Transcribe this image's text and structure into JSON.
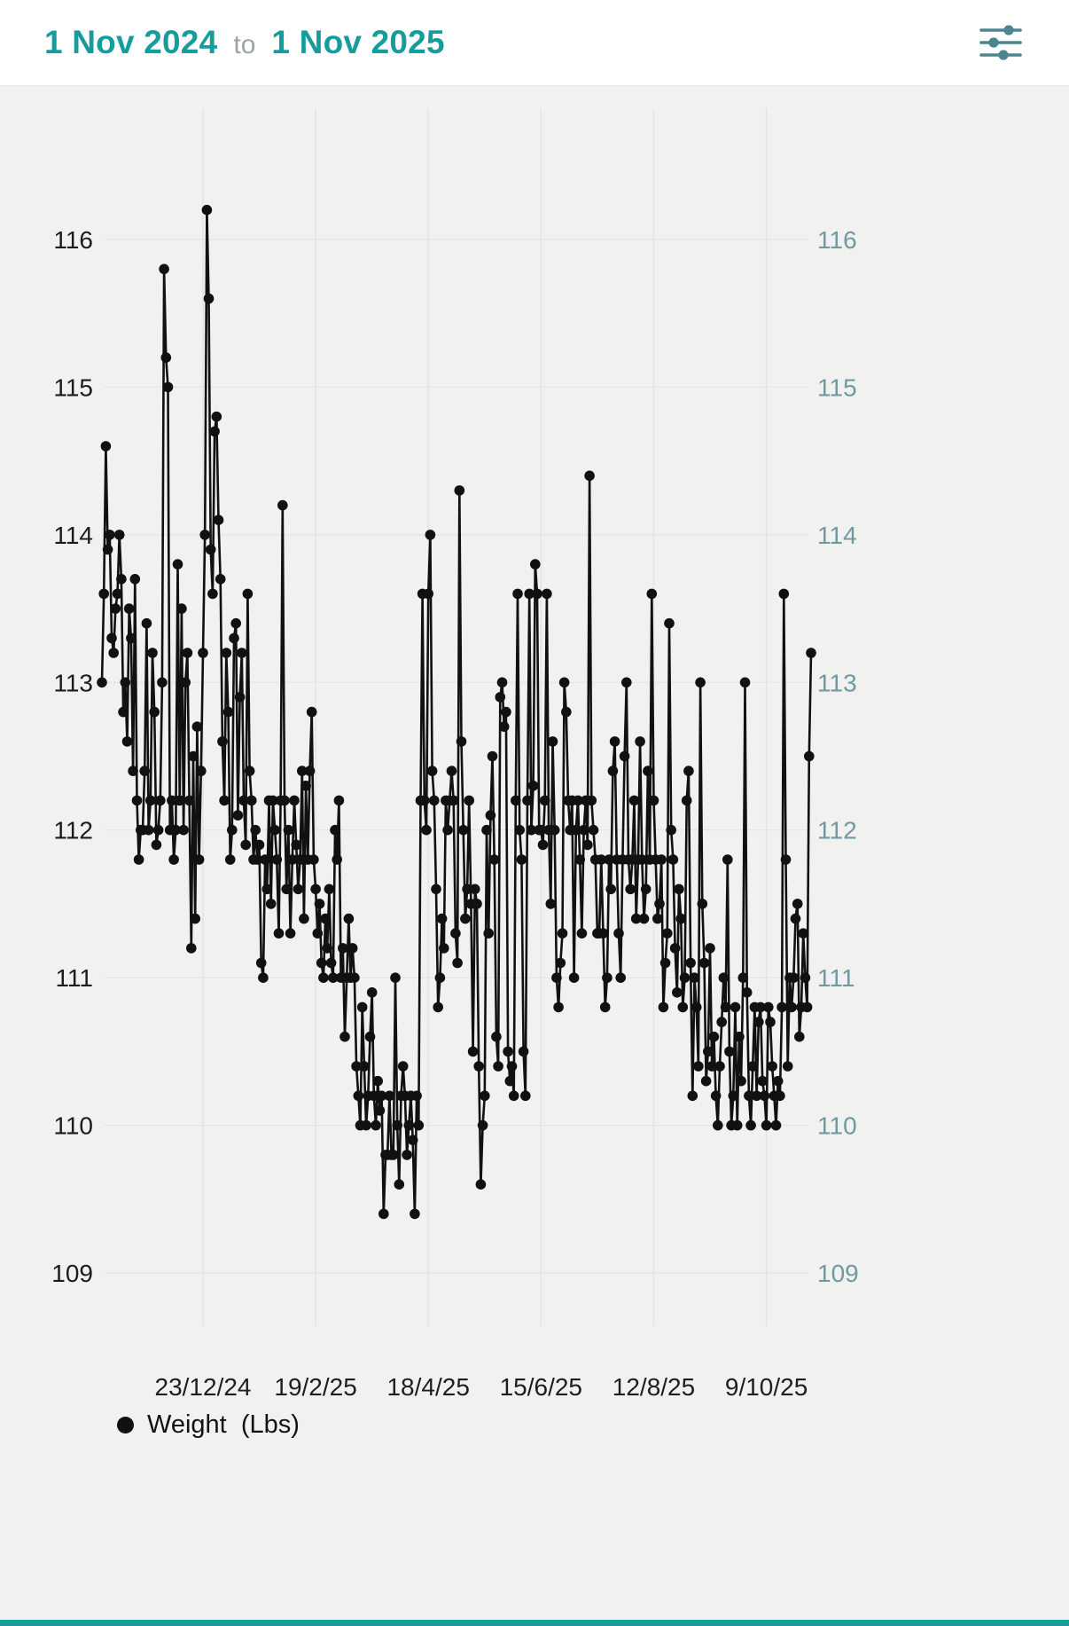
{
  "header": {
    "date_start": "1 Nov 2024",
    "date_separator": "to",
    "date_end": "1 Nov 2025",
    "filter_icon": "sliders-icon"
  },
  "legend": {
    "label": "Weight  (Lbs)"
  },
  "colors": {
    "accent": "#179c9c",
    "separator": "#9aa4a4",
    "icon": "#4b858d",
    "axis_left": "#1c1c1c",
    "axis_right": "#6f9aa1",
    "grid": "#e4e4e1",
    "point": "#111111",
    "background": "#f1f1ef",
    "header_bg": "#ffffff"
  },
  "chart_data": {
    "type": "scatter",
    "title": "",
    "series_name": "Weight (Lbs)",
    "unit": "Lbs",
    "grid": true,
    "legend_position": "bottom-left",
    "x_axis": {
      "start_date": "1 Nov 2024",
      "end_date": "1 Nov 2025",
      "tick_labels": [
        "23/12/24",
        "19/2/25",
        "18/4/25",
        "15/6/25",
        "12/8/25",
        "9/10/25"
      ],
      "tick_days": [
        52,
        110,
        168,
        226,
        284,
        342
      ],
      "range_days": [
        0,
        365
      ]
    },
    "y_axis": {
      "ticks": [
        116,
        115,
        114,
        113,
        112,
        111,
        110,
        109
      ],
      "range": [
        108.7,
        116.7
      ],
      "sides": "both"
    },
    "points": [
      [
        0,
        113.0
      ],
      [
        1,
        113.6
      ],
      [
        2,
        114.6
      ],
      [
        3,
        113.9
      ],
      [
        4,
        114.0
      ],
      [
        5,
        113.3
      ],
      [
        6,
        113.2
      ],
      [
        7,
        113.5
      ],
      [
        8,
        113.6
      ],
      [
        9,
        114.0
      ],
      [
        10,
        113.7
      ],
      [
        11,
        112.8
      ],
      [
        12,
        113.0
      ],
      [
        13,
        112.6
      ],
      [
        14,
        113.5
      ],
      [
        15,
        113.3
      ],
      [
        16,
        112.4
      ],
      [
        17,
        113.7
      ],
      [
        18,
        112.2
      ],
      [
        19,
        111.8
      ],
      [
        20,
        112.0
      ],
      [
        21,
        112.0
      ],
      [
        22,
        112.4
      ],
      [
        23,
        113.4
      ],
      [
        24,
        112.0
      ],
      [
        25,
        112.2
      ],
      [
        26,
        113.2
      ],
      [
        27,
        112.8
      ],
      [
        28,
        111.9
      ],
      [
        29,
        112.0
      ],
      [
        30,
        112.2
      ],
      [
        31,
        113.0
      ],
      [
        32,
        115.8
      ],
      [
        33,
        115.2
      ],
      [
        34,
        115.0
      ],
      [
        35,
        112.0
      ],
      [
        36,
        112.2
      ],
      [
        37,
        111.8
      ],
      [
        38,
        112.0
      ],
      [
        39,
        113.8
      ],
      [
        40,
        112.2
      ],
      [
        41,
        113.5
      ],
      [
        42,
        112.0
      ],
      [
        43,
        113.0
      ],
      [
        44,
        113.2
      ],
      [
        45,
        112.2
      ],
      [
        46,
        111.2
      ],
      [
        47,
        112.5
      ],
      [
        48,
        111.4
      ],
      [
        49,
        112.7
      ],
      [
        50,
        111.8
      ],
      [
        51,
        112.4
      ],
      [
        52,
        113.2
      ],
      [
        53,
        114.0
      ],
      [
        54,
        116.2
      ],
      [
        55,
        115.6
      ],
      [
        56,
        113.9
      ],
      [
        57,
        113.6
      ],
      [
        58,
        114.7
      ],
      [
        59,
        114.8
      ],
      [
        60,
        114.1
      ],
      [
        61,
        113.7
      ],
      [
        62,
        112.6
      ],
      [
        63,
        112.2
      ],
      [
        64,
        113.2
      ],
      [
        65,
        112.8
      ],
      [
        66,
        111.8
      ],
      [
        67,
        112.0
      ],
      [
        68,
        113.3
      ],
      [
        69,
        113.4
      ],
      [
        70,
        112.1
      ],
      [
        71,
        112.9
      ],
      [
        72,
        113.2
      ],
      [
        73,
        112.2
      ],
      [
        74,
        111.9
      ],
      [
        75,
        113.6
      ],
      [
        76,
        112.4
      ],
      [
        77,
        112.2
      ],
      [
        78,
        111.8
      ],
      [
        79,
        112.0
      ],
      [
        80,
        111.8
      ],
      [
        81,
        111.9
      ],
      [
        82,
        111.1
      ],
      [
        83,
        111.0
      ],
      [
        84,
        111.8
      ],
      [
        85,
        111.6
      ],
      [
        86,
        112.2
      ],
      [
        87,
        111.5
      ],
      [
        88,
        112.2
      ],
      [
        89,
        112.0
      ],
      [
        90,
        111.8
      ],
      [
        91,
        111.3
      ],
      [
        92,
        112.2
      ],
      [
        93,
        114.2
      ],
      [
        94,
        112.2
      ],
      [
        95,
        111.6
      ],
      [
        96,
        112.0
      ],
      [
        97,
        111.3
      ],
      [
        98,
        111.8
      ],
      [
        99,
        112.2
      ],
      [
        100,
        111.9
      ],
      [
        101,
        111.6
      ],
      [
        102,
        111.8
      ],
      [
        103,
        112.4
      ],
      [
        104,
        111.4
      ],
      [
        105,
        112.3
      ],
      [
        106,
        111.8
      ],
      [
        107,
        112.4
      ],
      [
        108,
        112.8
      ],
      [
        109,
        111.8
      ],
      [
        110,
        111.6
      ],
      [
        111,
        111.3
      ],
      [
        112,
        111.5
      ],
      [
        113,
        111.1
      ],
      [
        114,
        111.0
      ],
      [
        115,
        111.4
      ],
      [
        116,
        111.2
      ],
      [
        117,
        111.6
      ],
      [
        118,
        111.1
      ],
      [
        119,
        111.0
      ],
      [
        120,
        112.0
      ],
      [
        121,
        111.8
      ],
      [
        122,
        112.2
      ],
      [
        123,
        111.0
      ],
      [
        124,
        111.2
      ],
      [
        125,
        110.6
      ],
      [
        126,
        111.0
      ],
      [
        127,
        111.4
      ],
      [
        128,
        111.0
      ],
      [
        129,
        111.2
      ],
      [
        130,
        111.0
      ],
      [
        131,
        110.4
      ],
      [
        132,
        110.2
      ],
      [
        133,
        110.0
      ],
      [
        134,
        110.8
      ],
      [
        135,
        110.4
      ],
      [
        136,
        110.0
      ],
      [
        137,
        110.2
      ],
      [
        138,
        110.6
      ],
      [
        139,
        110.9
      ],
      [
        140,
        110.2
      ],
      [
        141,
        110.0
      ],
      [
        142,
        110.3
      ],
      [
        143,
        110.1
      ],
      [
        144,
        110.2
      ],
      [
        145,
        109.4
      ],
      [
        146,
        109.8
      ],
      [
        147,
        109.8
      ],
      [
        148,
        110.2
      ],
      [
        149,
        109.8
      ],
      [
        150,
        109.8
      ],
      [
        151,
        111.0
      ],
      [
        152,
        110.0
      ],
      [
        153,
        109.6
      ],
      [
        154,
        110.2
      ],
      [
        155,
        110.4
      ],
      [
        156,
        110.2
      ],
      [
        157,
        109.8
      ],
      [
        158,
        110.0
      ],
      [
        159,
        110.2
      ],
      [
        160,
        109.9
      ],
      [
        161,
        109.4
      ],
      [
        162,
        110.2
      ],
      [
        163,
        110.0
      ],
      [
        164,
        112.2
      ],
      [
        165,
        113.6
      ],
      [
        166,
        112.2
      ],
      [
        167,
        112.0
      ],
      [
        168,
        113.6
      ],
      [
        169,
        114.0
      ],
      [
        170,
        112.4
      ],
      [
        171,
        112.2
      ],
      [
        172,
        111.6
      ],
      [
        173,
        110.8
      ],
      [
        174,
        111.0
      ],
      [
        175,
        111.4
      ],
      [
        176,
        111.2
      ],
      [
        177,
        112.2
      ],
      [
        178,
        112.0
      ],
      [
        179,
        112.2
      ],
      [
        180,
        112.4
      ],
      [
        181,
        112.2
      ],
      [
        182,
        111.3
      ],
      [
        183,
        111.1
      ],
      [
        184,
        114.3
      ],
      [
        185,
        112.6
      ],
      [
        186,
        112.0
      ],
      [
        187,
        111.4
      ],
      [
        188,
        111.6
      ],
      [
        189,
        112.2
      ],
      [
        190,
        111.5
      ],
      [
        191,
        110.5
      ],
      [
        192,
        111.6
      ],
      [
        193,
        111.5
      ],
      [
        194,
        110.4
      ],
      [
        195,
        109.6
      ],
      [
        196,
        110.0
      ],
      [
        197,
        110.2
      ],
      [
        198,
        112.0
      ],
      [
        199,
        111.3
      ],
      [
        200,
        112.1
      ],
      [
        201,
        112.5
      ],
      [
        202,
        111.8
      ],
      [
        203,
        110.6
      ],
      [
        204,
        110.4
      ],
      [
        205,
        112.9
      ],
      [
        206,
        113.0
      ],
      [
        207,
        112.7
      ],
      [
        208,
        112.8
      ],
      [
        209,
        110.5
      ],
      [
        210,
        110.3
      ],
      [
        211,
        110.4
      ],
      [
        212,
        110.2
      ],
      [
        213,
        112.2
      ],
      [
        214,
        113.6
      ],
      [
        215,
        112.0
      ],
      [
        216,
        111.8
      ],
      [
        217,
        110.5
      ],
      [
        218,
        110.2
      ],
      [
        219,
        112.2
      ],
      [
        220,
        113.6
      ],
      [
        221,
        112.0
      ],
      [
        222,
        112.3
      ],
      [
        223,
        113.8
      ],
      [
        224,
        113.6
      ],
      [
        225,
        112.0
      ],
      [
        226,
        112.0
      ],
      [
        227,
        111.9
      ],
      [
        228,
        112.2
      ],
      [
        229,
        113.6
      ],
      [
        230,
        112.0
      ],
      [
        231,
        111.5
      ],
      [
        232,
        112.6
      ],
      [
        233,
        112.0
      ],
      [
        234,
        111.0
      ],
      [
        235,
        110.8
      ],
      [
        236,
        111.1
      ],
      [
        237,
        111.3
      ],
      [
        238,
        113.0
      ],
      [
        239,
        112.8
      ],
      [
        240,
        112.2
      ],
      [
        241,
        112.0
      ],
      [
        242,
        112.2
      ],
      [
        243,
        111.0
      ],
      [
        244,
        112.0
      ],
      [
        245,
        112.2
      ],
      [
        246,
        111.8
      ],
      [
        247,
        111.3
      ],
      [
        248,
        112.0
      ],
      [
        249,
        112.2
      ],
      [
        250,
        111.9
      ],
      [
        251,
        114.4
      ],
      [
        252,
        112.2
      ],
      [
        253,
        112.0
      ],
      [
        254,
        111.8
      ],
      [
        255,
        111.3
      ],
      [
        256,
        111.3
      ],
      [
        257,
        111.8
      ],
      [
        258,
        111.3
      ],
      [
        259,
        110.8
      ],
      [
        260,
        111.0
      ],
      [
        261,
        111.8
      ],
      [
        262,
        111.6
      ],
      [
        263,
        112.4
      ],
      [
        264,
        112.6
      ],
      [
        265,
        111.8
      ],
      [
        266,
        111.3
      ],
      [
        267,
        111.0
      ],
      [
        268,
        111.8
      ],
      [
        269,
        112.5
      ],
      [
        270,
        113.0
      ],
      [
        271,
        111.8
      ],
      [
        272,
        111.6
      ],
      [
        273,
        111.8
      ],
      [
        274,
        112.2
      ],
      [
        275,
        111.4
      ],
      [
        276,
        111.8
      ],
      [
        277,
        112.6
      ],
      [
        278,
        111.8
      ],
      [
        279,
        111.4
      ],
      [
        280,
        111.6
      ],
      [
        281,
        112.4
      ],
      [
        282,
        111.8
      ],
      [
        283,
        113.6
      ],
      [
        284,
        112.2
      ],
      [
        285,
        111.8
      ],
      [
        286,
        111.4
      ],
      [
        287,
        111.5
      ],
      [
        288,
        111.8
      ],
      [
        289,
        110.8
      ],
      [
        290,
        111.1
      ],
      [
        291,
        111.3
      ],
      [
        292,
        113.4
      ],
      [
        293,
        112.0
      ],
      [
        294,
        111.8
      ],
      [
        295,
        111.2
      ],
      [
        296,
        110.9
      ],
      [
        297,
        111.6
      ],
      [
        298,
        111.4
      ],
      [
        299,
        110.8
      ],
      [
        300,
        111.0
      ],
      [
        301,
        112.2
      ],
      [
        302,
        112.4
      ],
      [
        303,
        111.1
      ],
      [
        304,
        110.2
      ],
      [
        305,
        111.0
      ],
      [
        306,
        110.8
      ],
      [
        307,
        110.4
      ],
      [
        308,
        113.0
      ],
      [
        309,
        111.5
      ],
      [
        310,
        111.1
      ],
      [
        311,
        110.3
      ],
      [
        312,
        110.5
      ],
      [
        313,
        111.2
      ],
      [
        314,
        110.4
      ],
      [
        315,
        110.6
      ],
      [
        316,
        110.2
      ],
      [
        317,
        110.0
      ],
      [
        318,
        110.4
      ],
      [
        319,
        110.7
      ],
      [
        320,
        111.0
      ],
      [
        321,
        110.8
      ],
      [
        322,
        111.8
      ],
      [
        323,
        110.5
      ],
      [
        324,
        110.0
      ],
      [
        325,
        110.2
      ],
      [
        326,
        110.8
      ],
      [
        327,
        110.0
      ],
      [
        328,
        110.6
      ],
      [
        329,
        110.3
      ],
      [
        330,
        111.0
      ],
      [
        331,
        113.0
      ],
      [
        332,
        110.9
      ],
      [
        333,
        110.2
      ],
      [
        334,
        110.0
      ],
      [
        335,
        110.4
      ],
      [
        336,
        110.8
      ],
      [
        337,
        110.2
      ],
      [
        338,
        110.7
      ],
      [
        339,
        110.8
      ],
      [
        340,
        110.3
      ],
      [
        341,
        110.2
      ],
      [
        342,
        110.0
      ],
      [
        343,
        110.8
      ],
      [
        344,
        110.7
      ],
      [
        345,
        110.4
      ],
      [
        346,
        110.2
      ],
      [
        347,
        110.0
      ],
      [
        348,
        110.3
      ],
      [
        349,
        110.2
      ],
      [
        350,
        110.8
      ],
      [
        351,
        113.6
      ],
      [
        352,
        111.8
      ],
      [
        353,
        110.4
      ],
      [
        354,
        111.0
      ],
      [
        355,
        110.8
      ],
      [
        356,
        111.0
      ],
      [
        357,
        111.4
      ],
      [
        358,
        111.5
      ],
      [
        359,
        110.6
      ],
      [
        360,
        110.8
      ],
      [
        361,
        111.3
      ],
      [
        362,
        111.0
      ],
      [
        363,
        110.8
      ],
      [
        364,
        112.5
      ],
      [
        365,
        113.2
      ]
    ]
  }
}
